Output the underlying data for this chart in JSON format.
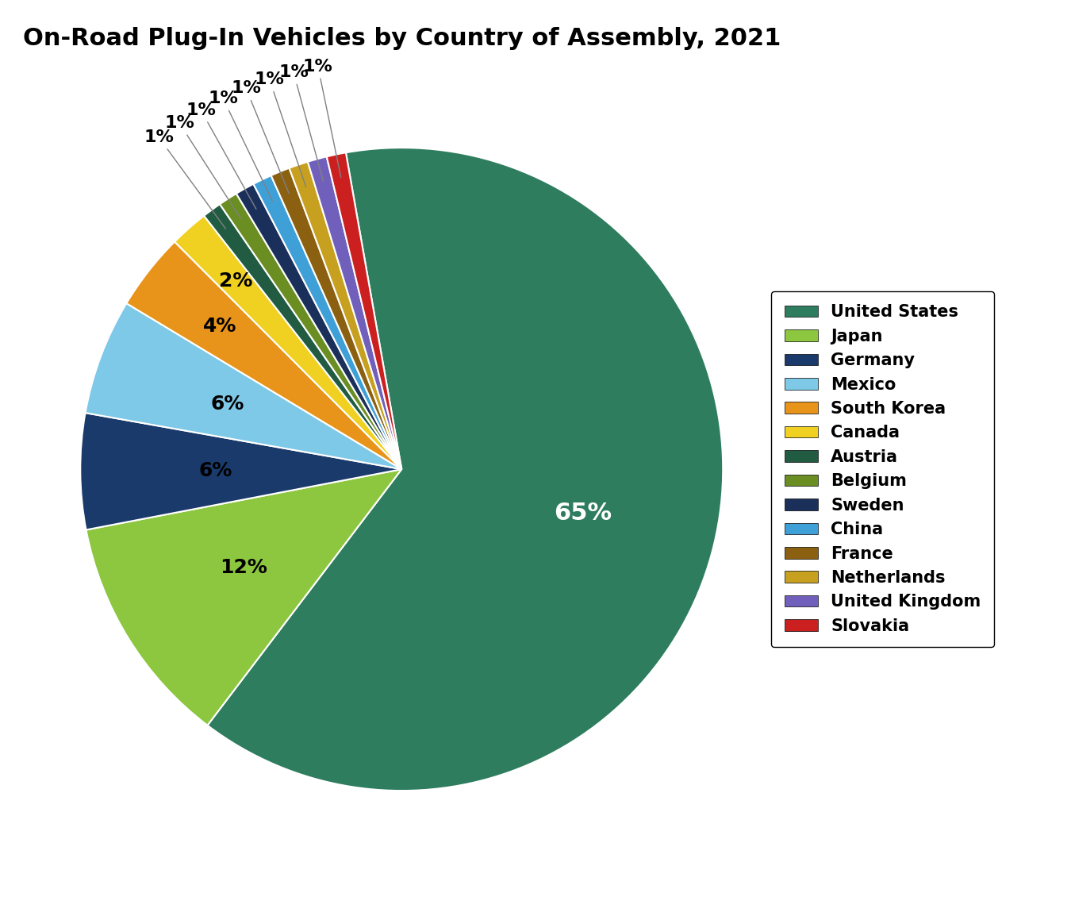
{
  "title": "On-Road Plug-In Vehicles by Country of Assembly, 2021",
  "title_fontsize": 22,
  "labels": [
    "United States",
    "Japan",
    "Germany",
    "Mexico",
    "South Korea",
    "Canada",
    "Austria",
    "Belgium",
    "Sweden",
    "China",
    "France",
    "Netherlands",
    "United Kingdom",
    "Slovakia"
  ],
  "values": [
    65,
    12,
    6,
    6,
    4,
    2,
    1,
    1,
    1,
    1,
    1,
    1,
    1,
    1
  ],
  "colors": [
    "#2e7d5e",
    "#8dc63f",
    "#1a3a6b",
    "#7ec8e8",
    "#e8931a",
    "#f0d020",
    "#215c42",
    "#6b8e23",
    "#1a2f5a",
    "#3fa0d8",
    "#8b6010",
    "#c8a020",
    "#7060bb",
    "#cc2020"
  ],
  "pct_labels": [
    "65%",
    "12%",
    "6%",
    "6%",
    "4%",
    "2%",
    "1%",
    "1%",
    "1%",
    "1%",
    "1%",
    "1%",
    "1%",
    "1%"
  ],
  "background_color": "#ffffff",
  "legend_fontsize": 15,
  "label_fontsize": 18
}
